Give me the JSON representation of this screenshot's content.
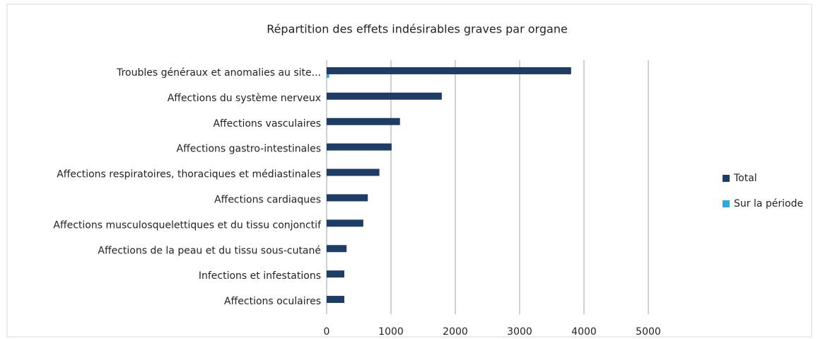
{
  "chart_data": {
    "type": "hbar",
    "title": "Répartition des effets indésirables graves par organe",
    "categories": [
      "Troubles généraux et anomalies au site...",
      "Affections du système nerveux",
      "Affections vasculaires",
      "Affections gastro-intestinales",
      "Affections respiratoires, thoraciques et médiastinales",
      "Affections cardiaques",
      "Affections musculosquelettiques et du tissu conjonctif",
      "Affections de la peau et du tissu sous-cutané",
      "Infections et infestations",
      "Affections oculaires"
    ],
    "series": [
      {
        "name": "Total",
        "color": "#1f3d64",
        "values": [
          3800,
          1790,
          1140,
          1010,
          820,
          640,
          570,
          310,
          275,
          275
        ]
      },
      {
        "name": "Sur la période",
        "color": "#2ea6e0",
        "values": [
          40,
          5,
          5,
          5,
          5,
          5,
          5,
          3,
          3,
          3
        ]
      }
    ],
    "xlim": [
      0,
      5000
    ],
    "xticks": [
      0,
      1000,
      2000,
      3000,
      4000,
      5000
    ],
    "grid": true,
    "legend": "right"
  }
}
